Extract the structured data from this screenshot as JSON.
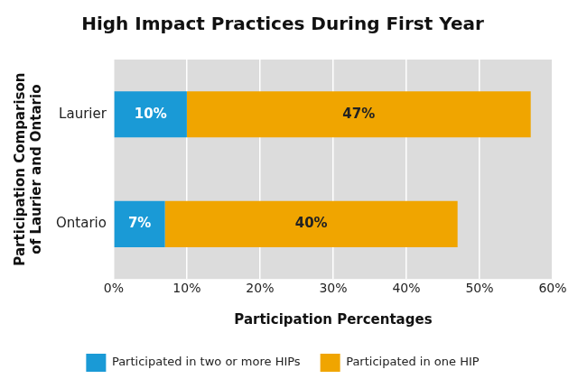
{
  "chart_data": {
    "type": "bar",
    "title": "High Impact Practices During First Year",
    "orientation": "horizontal",
    "stacked": true,
    "categories": [
      "Laurier",
      "Ontario"
    ],
    "series": [
      {
        "name": "Participated in two or more HIPs",
        "color": "#1a9ad6",
        "values": [
          10,
          7
        ],
        "value_labels": [
          "10%",
          "7%"
        ]
      },
      {
        "name": "Participated in one HIP",
        "color": "#f0a500",
        "values": [
          47,
          40
        ],
        "value_labels": [
          "47%",
          "40%"
        ]
      }
    ],
    "x_label": "Participation Percentages",
    "y_label": [
      "Participation Comparison",
      "of Laurier and Ontario"
    ],
    "xlim": [
      0,
      60
    ],
    "xticks": [
      {
        "value": 0,
        "label": "0%"
      },
      {
        "value": 10,
        "label": "10%"
      },
      {
        "value": 20,
        "label": "20%"
      },
      {
        "value": 30,
        "label": "30%"
      },
      {
        "value": 40,
        "label": "40%"
      },
      {
        "value": 50,
        "label": "50%"
      },
      {
        "value": 60,
        "label": "60%"
      }
    ],
    "grid": true,
    "legend": "bottom",
    "data_labels": true
  }
}
